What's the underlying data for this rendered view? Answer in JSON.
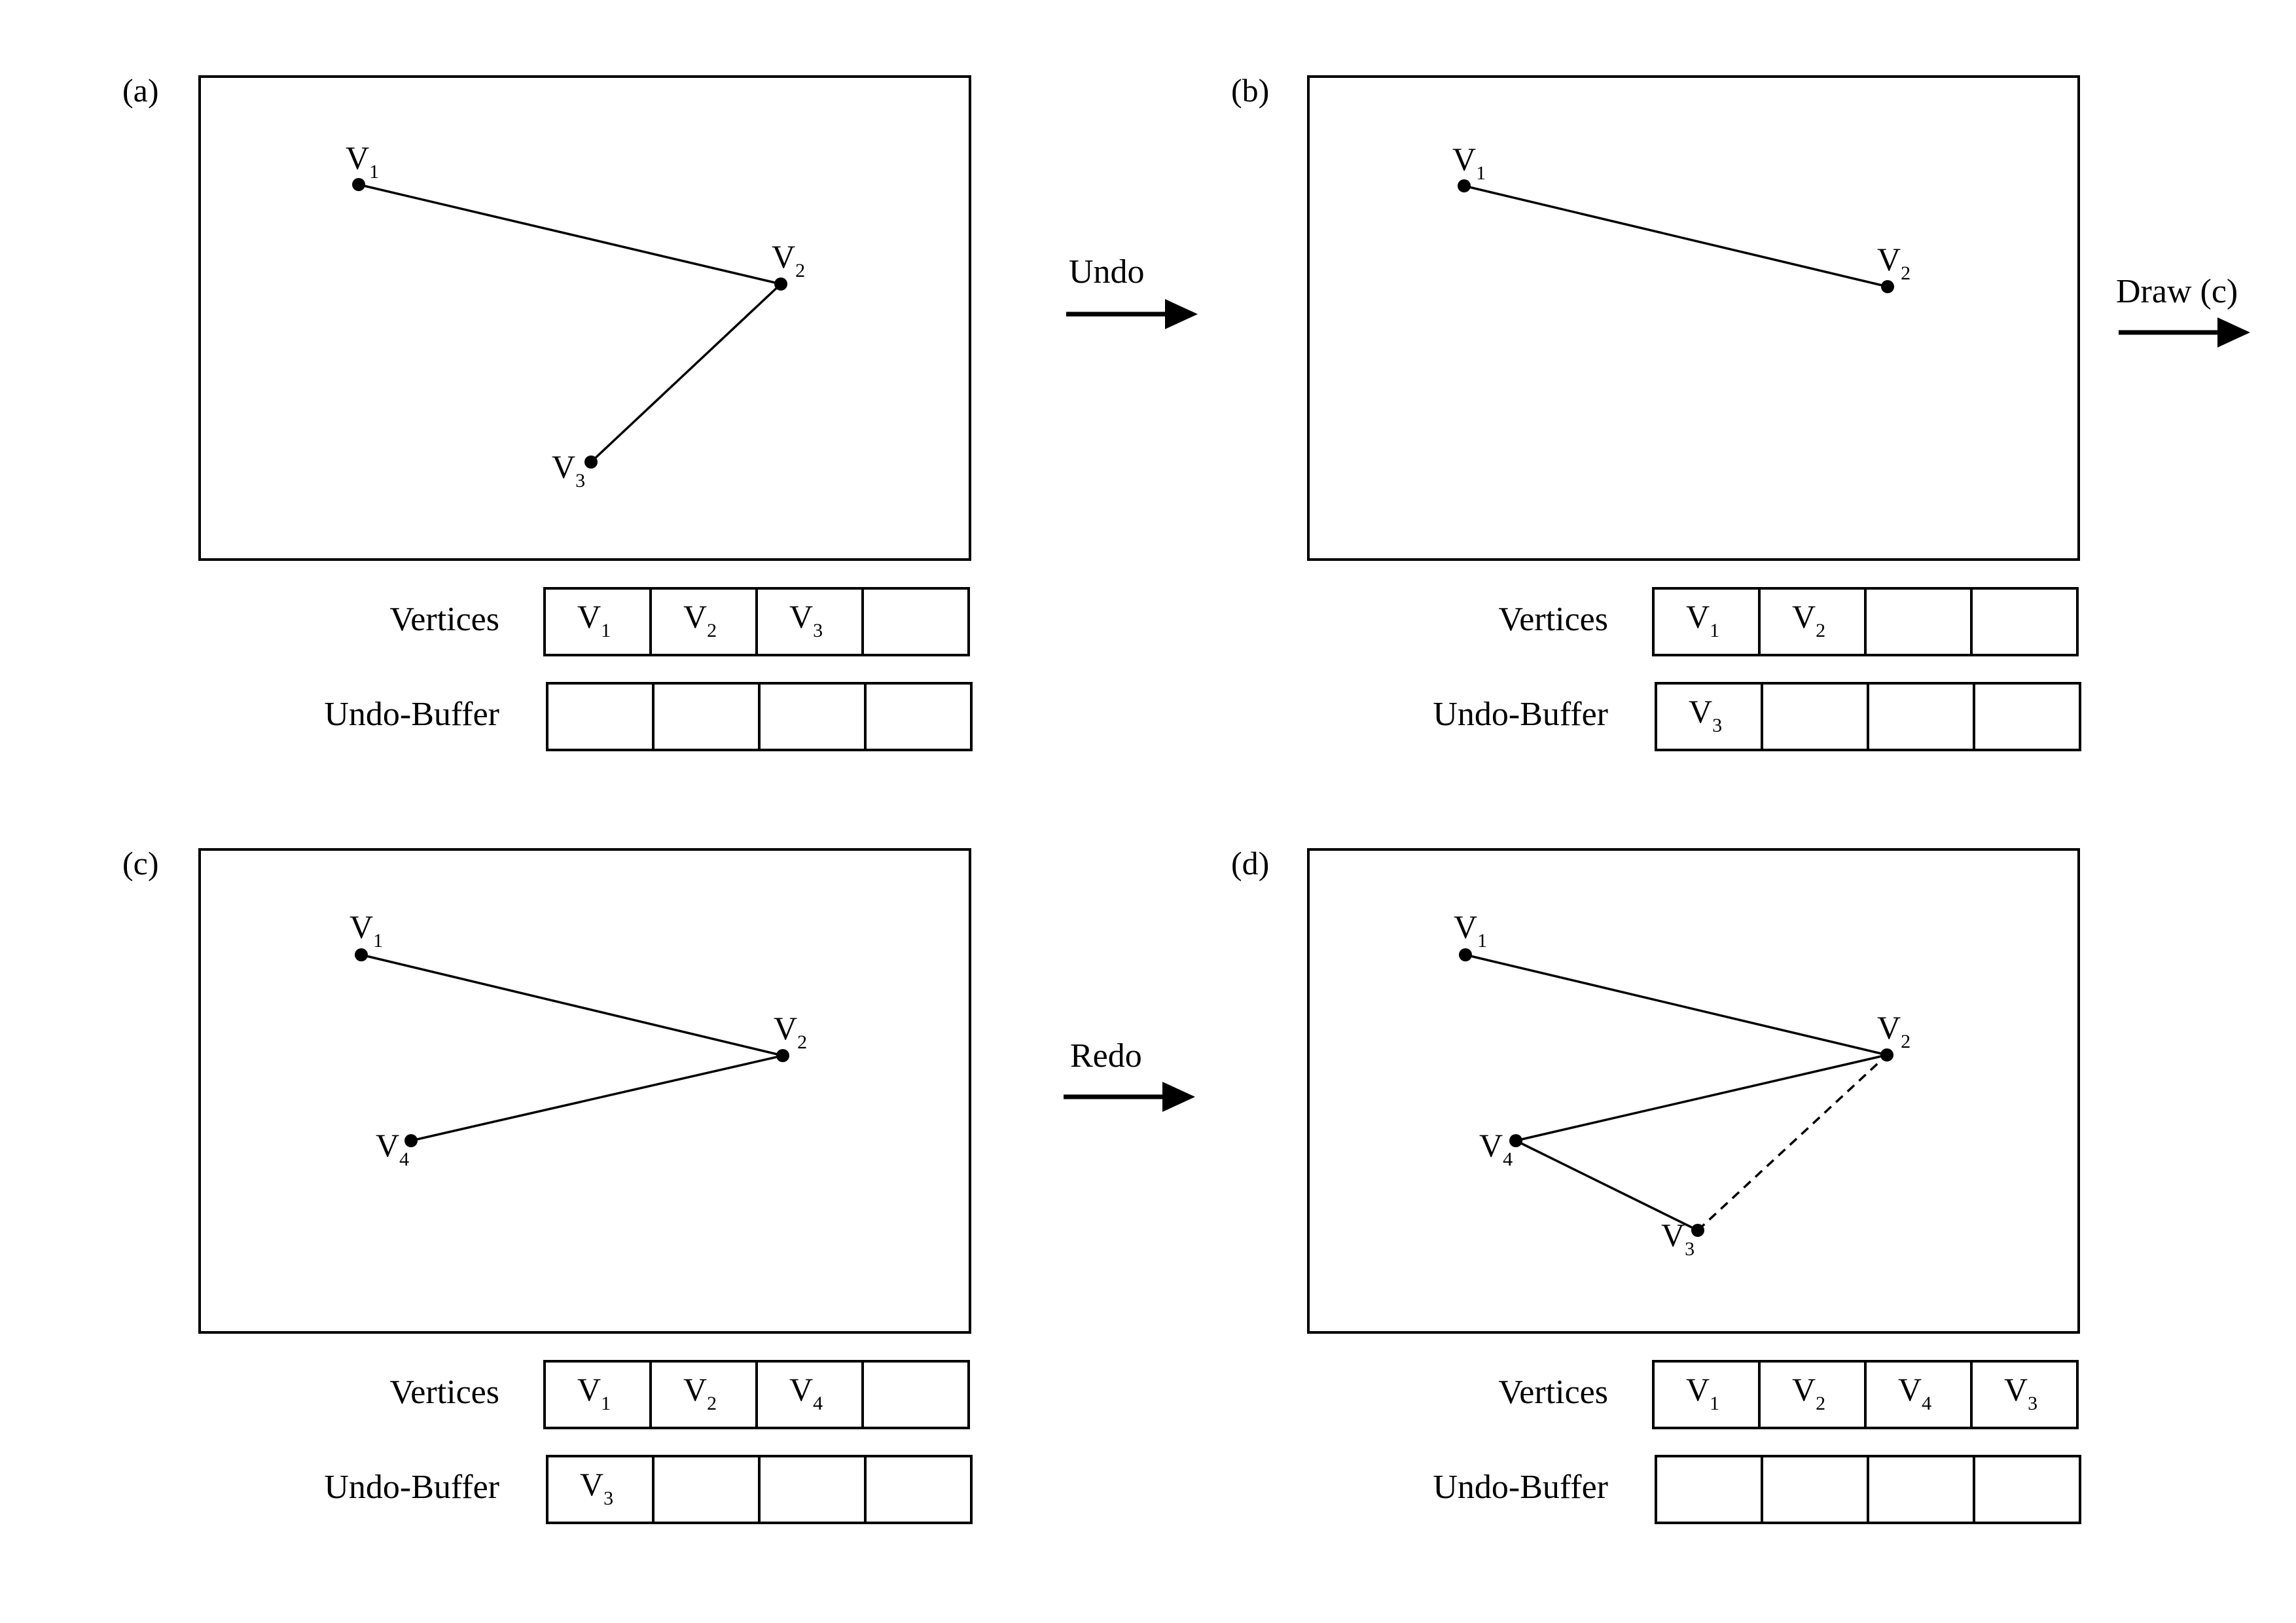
{
  "arrows": [
    {
      "id": "undo",
      "label": "Undo"
    },
    {
      "id": "draw-c",
      "label": "Draw (c)"
    },
    {
      "id": "redo",
      "label": "Redo"
    }
  ],
  "row_labels": {
    "vertices": "Vertices",
    "undo_buffer": "Undo-Buffer"
  },
  "panels": [
    {
      "id": "a",
      "label": "(a)",
      "vertices_row": [
        "1",
        "2",
        "3",
        ""
      ],
      "undo_buffer_row": [
        "",
        "",
        "",
        ""
      ],
      "edges": [
        {
          "from": "1",
          "to": "2",
          "style": "solid"
        },
        {
          "from": "2",
          "to": "3",
          "style": "solid"
        }
      ]
    },
    {
      "id": "b",
      "label": "(b)",
      "vertices_row": [
        "1",
        "2",
        "",
        ""
      ],
      "undo_buffer_row": [
        "3",
        "",
        "",
        ""
      ],
      "edges": [
        {
          "from": "1",
          "to": "2",
          "style": "solid"
        }
      ]
    },
    {
      "id": "c",
      "label": "(c)",
      "vertices_row": [
        "1",
        "2",
        "4",
        ""
      ],
      "undo_buffer_row": [
        "3",
        "",
        "",
        ""
      ],
      "edges": [
        {
          "from": "1",
          "to": "2",
          "style": "solid"
        },
        {
          "from": "2",
          "to": "4",
          "style": "solid"
        }
      ]
    },
    {
      "id": "d",
      "label": "(d)",
      "vertices_row": [
        "1",
        "2",
        "4",
        "3"
      ],
      "undo_buffer_row": [
        "",
        "",
        "",
        ""
      ],
      "edges": [
        {
          "from": "1",
          "to": "2",
          "style": "solid"
        },
        {
          "from": "2",
          "to": "4",
          "style": "solid"
        },
        {
          "from": "4",
          "to": "3",
          "style": "solid"
        },
        {
          "from": "3",
          "to": "2",
          "style": "dashed"
        }
      ]
    }
  ]
}
